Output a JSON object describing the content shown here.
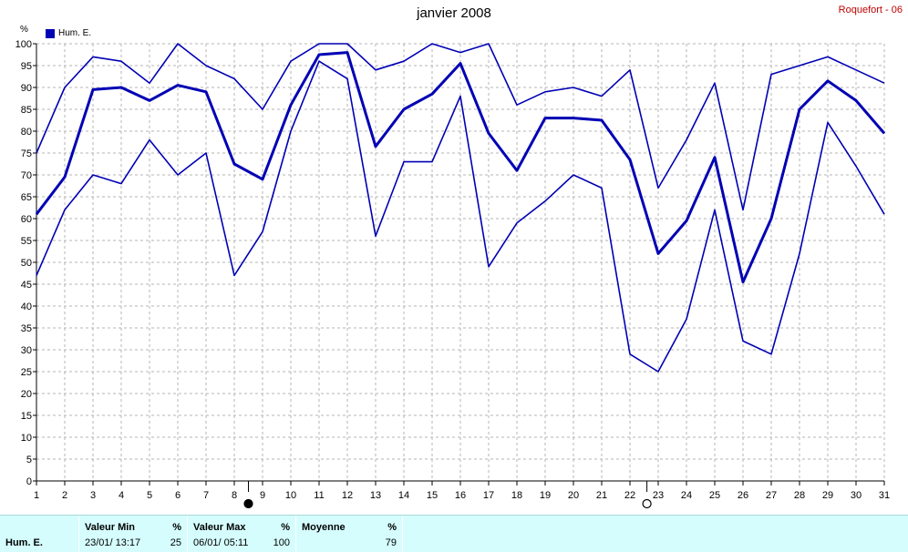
{
  "title": "janvier 2008",
  "station": "Roquefort - 06",
  "unit_label": "%",
  "colors": {
    "series": "#0000b4",
    "grid": "#b4b4b4",
    "station": "#c00000",
    "footer_bg": "#d5fdfd"
  },
  "legend": {
    "label": "Hum. E."
  },
  "chart_data": {
    "type": "line",
    "title": "janvier 2008",
    "xlabel": "",
    "ylabel": "%",
    "x": [
      1,
      2,
      3,
      4,
      5,
      6,
      7,
      8,
      9,
      10,
      11,
      12,
      13,
      14,
      15,
      16,
      17,
      18,
      19,
      20,
      21,
      22,
      23,
      24,
      25,
      26,
      27,
      28,
      29,
      30,
      31
    ],
    "ylim": [
      0,
      100
    ],
    "yticks": [
      0,
      5,
      10,
      15,
      20,
      25,
      30,
      35,
      40,
      45,
      50,
      55,
      60,
      65,
      70,
      75,
      80,
      85,
      90,
      95,
      100
    ],
    "grid": true,
    "legend_position": "top-left",
    "series": [
      {
        "name": "Hum. E.",
        "role": "max",
        "values": [
          75,
          90,
          97,
          96,
          91,
          100,
          95,
          92,
          85,
          96,
          100,
          100,
          94,
          96,
          100,
          98,
          100,
          86,
          89,
          90,
          88,
          94,
          67,
          78,
          91,
          62,
          93,
          95,
          97,
          94,
          91
        ]
      },
      {
        "name": "Hum. E.",
        "role": "mean",
        "values": [
          61,
          69.5,
          89.5,
          90,
          87,
          90.5,
          89,
          72.5,
          69,
          86,
          97.5,
          98,
          76.5,
          85,
          88.5,
          95.5,
          79.5,
          71,
          83,
          83,
          82.5,
          73.5,
          52,
          59.5,
          74,
          45.5,
          60,
          85,
          91.5,
          87,
          79.5
        ]
      },
      {
        "name": "Hum. E.",
        "role": "min",
        "values": [
          47,
          62,
          70,
          68,
          78,
          70,
          75,
          47,
          57,
          80,
          96,
          92,
          56,
          73,
          73,
          88,
          49,
          59,
          64,
          70,
          67,
          29,
          25,
          37,
          62,
          32,
          29,
          52,
          82,
          72,
          61
        ]
      }
    ],
    "markers": [
      {
        "day": 8.5,
        "symbol": "full-moon"
      },
      {
        "day": 22.6,
        "symbol": "new-moon"
      }
    ]
  },
  "footer": {
    "row_label": "Hum. E.",
    "min": {
      "header": "Valeur Min",
      "unit": "%",
      "when": "23/01/  13:17",
      "value": "25"
    },
    "max": {
      "header": "Valeur Max",
      "unit": "%",
      "when": "06/01/  05:11",
      "value": "100"
    },
    "mean": {
      "header": "Moyenne",
      "unit": "%",
      "value": "79"
    }
  }
}
